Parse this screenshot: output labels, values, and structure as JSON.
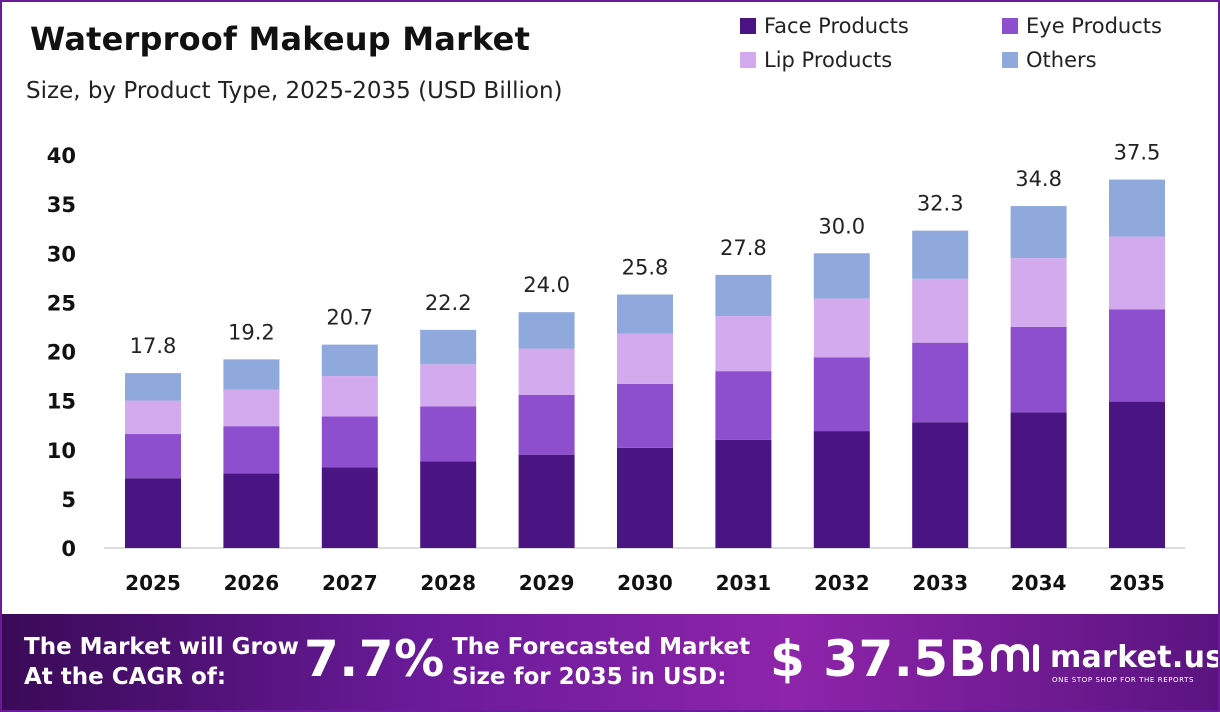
{
  "chart_data": {
    "type": "bar",
    "stacked": true,
    "title": "Waterproof Makeup Market",
    "subtitle": "Size, by Product Type, 2025-2035 (USD Billion)",
    "categories": [
      "2025",
      "2026",
      "2027",
      "2028",
      "2029",
      "2030",
      "2031",
      "2032",
      "2033",
      "2034",
      "2035"
    ],
    "totals": [
      "17.8",
      "19.2",
      "20.7",
      "22.2",
      "24.0",
      "25.8",
      "27.8",
      "30.0",
      "32.3",
      "34.8",
      "37.5"
    ],
    "series": [
      {
        "name": "Face Products",
        "color": "#4a1582",
        "values": [
          7.1,
          7.6,
          8.2,
          8.8,
          9.5,
          10.2,
          11.0,
          11.9,
          12.8,
          13.8,
          14.9
        ]
      },
      {
        "name": "Eye Products",
        "color": "#8e4fcf",
        "values": [
          4.5,
          4.8,
          5.2,
          5.6,
          6.1,
          6.5,
          7.0,
          7.5,
          8.1,
          8.7,
          9.4
        ]
      },
      {
        "name": "Lip Products",
        "color": "#d3aaee",
        "values": [
          3.4,
          3.7,
          4.1,
          4.3,
          4.7,
          5.1,
          5.6,
          6.0,
          6.5,
          7.0,
          7.4
        ]
      },
      {
        "name": "Others",
        "color": "#8fa9dc",
        "values": [
          2.8,
          3.1,
          3.2,
          3.5,
          3.7,
          4.0,
          4.2,
          4.6,
          4.9,
          5.3,
          5.8
        ]
      }
    ],
    "ylim": [
      0,
      40
    ],
    "yticks": [
      0,
      5,
      10,
      15,
      20,
      25,
      30,
      35,
      40
    ],
    "legend_position": "top-right",
    "grid": false
  },
  "footer": {
    "cagr_label_line1": "The Market will Grow",
    "cagr_label_line2": "At the CAGR of:",
    "cagr_value": "7.7%",
    "forecast_label_line1": "The Forecasted Market",
    "forecast_label_line2": "Size for 2035 in USD:",
    "forecast_value": "$ 37.5B",
    "brand": "market.us",
    "brand_tagline": "ONE STOP SHOP FOR THE REPORTS"
  }
}
